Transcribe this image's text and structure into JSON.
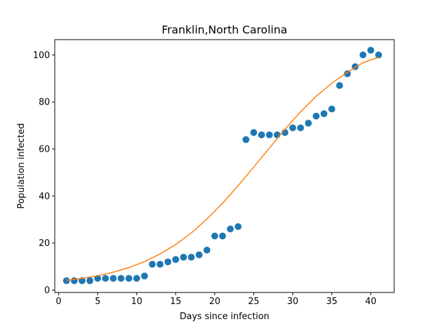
{
  "chart_data": {
    "type": "scatter",
    "title": "Franklin,North Carolina",
    "xlabel": "Days since infection",
    "ylabel": "Population infected",
    "xlim": [
      -0.5,
      43.0
    ],
    "ylim": [
      -1.0,
      106.5
    ],
    "xticks": [
      0,
      5,
      10,
      15,
      20,
      25,
      30,
      35,
      40
    ],
    "yticks": [
      0,
      20,
      40,
      60,
      80,
      100
    ],
    "grid": false,
    "series": [
      {
        "kind": "scatter",
        "color": "#1f77b4",
        "x": [
          1,
          2,
          3,
          4,
          5,
          6,
          7,
          8,
          9,
          10,
          11,
          12,
          13,
          14,
          15,
          16,
          17,
          18,
          19,
          20,
          21,
          22,
          23,
          24,
          25,
          26,
          27,
          28,
          29,
          30,
          31,
          32,
          33,
          34,
          35,
          36,
          37,
          38,
          39,
          40,
          41
        ],
        "y": [
          4,
          4,
          4,
          4,
          5,
          5,
          5,
          5,
          5,
          5,
          6,
          11,
          11,
          12,
          13,
          14,
          14,
          15,
          17,
          23,
          23,
          26,
          27,
          64,
          67,
          66,
          66,
          66,
          67,
          69,
          69,
          71,
          74,
          75,
          77,
          87,
          92,
          95,
          100,
          102,
          100
        ]
      },
      {
        "kind": "line",
        "color": "#ff7f0e",
        "x": [
          1,
          3,
          5,
          7,
          9,
          11,
          13,
          15,
          17,
          19,
          21,
          23,
          25,
          27,
          29,
          31,
          33,
          35,
          37,
          39,
          41
        ],
        "y": [
          4.2,
          5.0,
          6.1,
          7.6,
          9.6,
          12.1,
          15.4,
          19.4,
          24.3,
          30.2,
          36.9,
          44.4,
          52.3,
          60.4,
          68.4,
          75.8,
          82.4,
          88.0,
          92.6,
          96.7,
          99.0
        ]
      }
    ]
  }
}
